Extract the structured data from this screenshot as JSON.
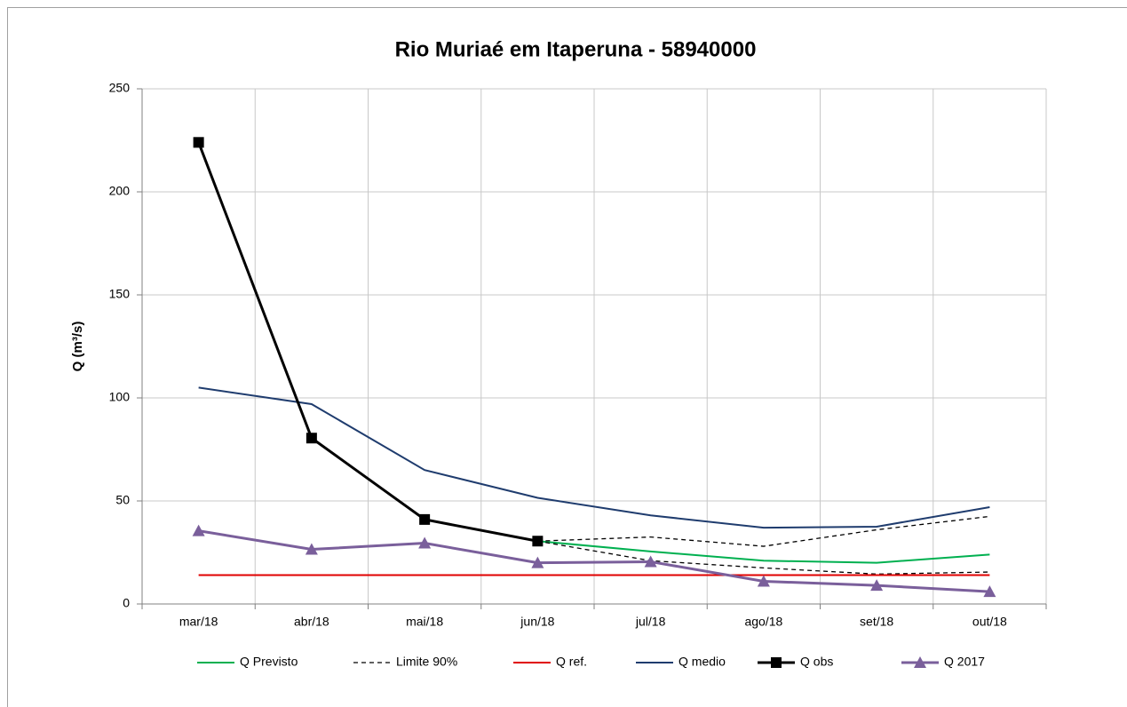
{
  "chart_data": {
    "type": "line",
    "title": "Rio Muriaé em Itaperuna - 58940000",
    "y_label": "Q (m³/s)",
    "categories": [
      "mar/18",
      "abr/18",
      "mai/18",
      "jun/18",
      "jul/18",
      "ago/18",
      "set/18",
      "out/18"
    ],
    "ylim": [
      0,
      250
    ],
    "yticks": [
      0,
      50,
      100,
      150,
      200,
      250
    ],
    "grid": true,
    "legend": "bottom",
    "series": [
      {
        "name": "Q Previsto",
        "color": "#00b050",
        "style": "solid",
        "values": [
          null,
          null,
          null,
          30.5,
          25.5,
          21,
          20,
          24
        ]
      },
      {
        "name": "Limite 90%",
        "color": "#000000",
        "style": "dashed",
        "values": [
          null,
          null,
          null,
          30.5,
          32.5,
          28,
          36,
          42.5
        ]
      },
      {
        "name": "Limite 90%",
        "color": "#000000",
        "style": "dashed",
        "values": [
          null,
          null,
          null,
          30.5,
          21,
          17.5,
          14.5,
          15.5
        ]
      },
      {
        "name": "Q ref.",
        "color": "#e00000",
        "style": "solid",
        "values": [
          14,
          14,
          14,
          14,
          14,
          14,
          14,
          14
        ]
      },
      {
        "name": "Q medio",
        "color": "#1f3c6e",
        "style": "solid",
        "values": [
          105,
          97,
          65,
          51.5,
          43,
          37,
          37.5,
          47
        ]
      },
      {
        "name": "Q obs",
        "color": "#000000",
        "style": "solid",
        "marker": "square",
        "values": [
          224,
          80.5,
          41,
          30.5,
          null,
          null,
          null,
          null
        ]
      },
      {
        "name": "Q 2017",
        "color": "#7a5f9b",
        "style": "solid",
        "marker": "triangle",
        "values": [
          35.5,
          26.5,
          29.5,
          20,
          20.5,
          11,
          9,
          6
        ]
      }
    ]
  }
}
